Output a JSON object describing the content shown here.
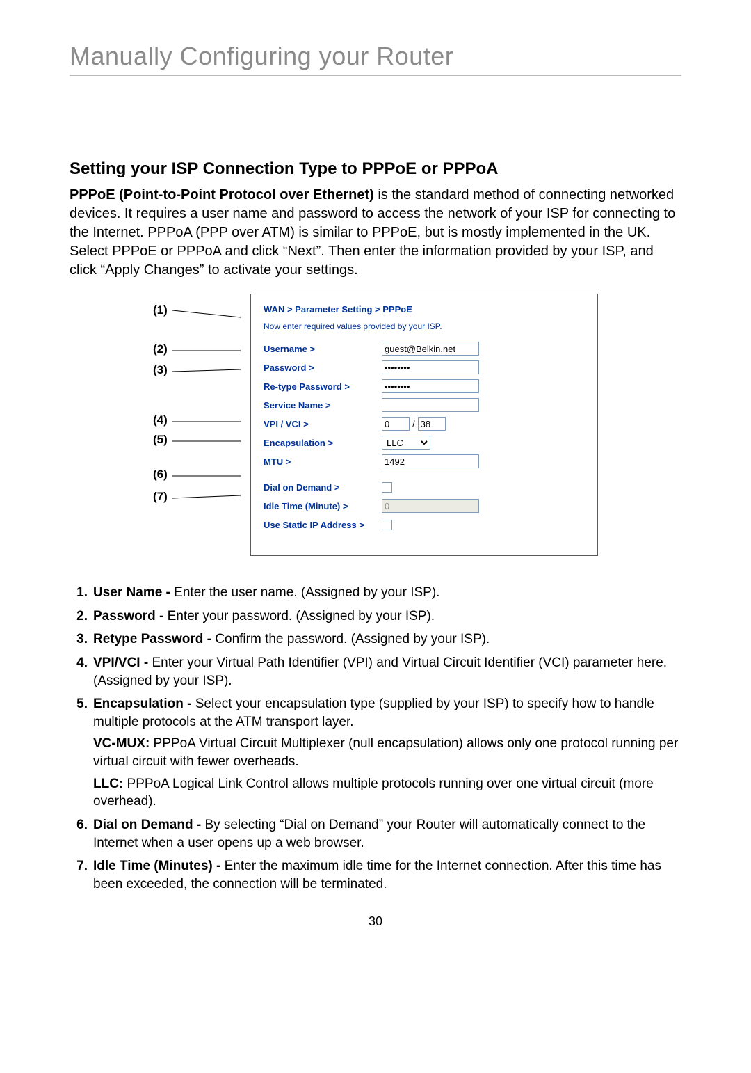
{
  "page_title": "Manually Configuring your Router",
  "sub_title": "Setting your ISP Connection Type to PPPoE or PPPoA",
  "intro_bold": "PPPoE (Point-to-Point Protocol over Ethernet)",
  "intro_rest": " is the standard method of connecting networked devices. It requires a user name and password to access the network of your ISP for connecting to the Internet. PPPoA (PPP over ATM) is similar to PPPoE, but is mostly implemented in the UK. Select PPPoE or PPPoA and click “Next”. Then enter the information provided by your ISP, and click “Apply Changes” to activate your settings.",
  "panel": {
    "breadcrumb": "WAN > Parameter Setting > PPPoE",
    "hint": "Now enter required values provided by your ISP.",
    "label_color": "#003399",
    "border_color": "#5a5a5a",
    "input_border": "#7f9db9",
    "rows": {
      "username_label": "Username >",
      "username_value": "guest@Belkin.net",
      "password_label": "Password >",
      "password_value": "••••••••",
      "retype_label": "Re-type Password >",
      "retype_value": "••••••••",
      "service_label": "Service Name >",
      "service_value": "",
      "vpivci_label": "VPI / VCI >",
      "vpi_value": "0",
      "vci_value": "38",
      "encap_label": "Encapsulation >",
      "encap_value": "LLC",
      "mtu_label": "MTU >",
      "mtu_value": "1492",
      "dod_label": "Dial on Demand >",
      "idle_label": "Idle Time (Minute) >",
      "idle_value": "0",
      "static_label": "Use Static IP Address >"
    }
  },
  "callouts": {
    "c1": "(1)",
    "c2": "(2)",
    "c3": "(3)",
    "c4": "(4)",
    "c5": "(5)",
    "c6": "(6)",
    "c7": "(7)"
  },
  "defs": [
    {
      "num": "1.",
      "term": "User Name - ",
      "desc": "Enter the user name. (Assigned by your ISP)."
    },
    {
      "num": "2.",
      "term": "Password - ",
      "desc": "Enter your password. (Assigned by your ISP)."
    },
    {
      "num": "3.",
      "term": "Retype Password - ",
      "desc": "Confirm the password. (Assigned by your ISP)."
    },
    {
      "num": "4.",
      "term": "VPI/VCI - ",
      "desc": "Enter your Virtual Path Identifier (VPI) and Virtual Circuit Identifier (VCI) parameter here. (Assigned by your ISP)."
    },
    {
      "num": "5.",
      "term": "Encapsulation - ",
      "desc": "Select your encapsulation type (supplied by your ISP) to specify how to handle multiple protocols at the ATM transport layer.",
      "extra": [
        {
          "b": "VC-MUX:",
          "t": " PPPoA Virtual Circuit Multiplexer (null encapsulation) allows only one protocol running per virtual circuit with fewer overheads."
        },
        {
          "b": "LLC:",
          "t": " PPPoA Logical Link Control allows multiple protocols running over one virtual circuit (more overhead)."
        }
      ]
    },
    {
      "num": "6.",
      "term": "Dial on Demand - ",
      "desc": "By selecting “Dial on Demand” your Router will automatically connect to the Internet when a user opens up a web browser."
    },
    {
      "num": "7.",
      "term": "Idle Time (Minutes) - ",
      "desc": "Enter the maximum idle time for the Internet connection. After this time has been exceeded, the connection will be terminated."
    }
  ],
  "page_number": "30"
}
